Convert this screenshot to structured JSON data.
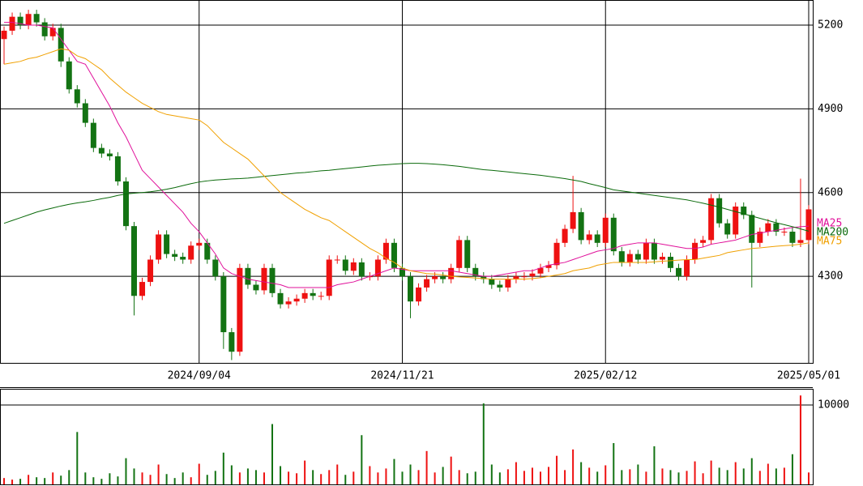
{
  "chart_data": {
    "type": "candlestick",
    "categories": [
      null,
      null,
      null,
      null,
      null,
      null,
      null,
      null,
      null,
      null,
      null,
      null,
      null,
      null,
      null,
      null,
      null,
      null,
      null,
      null,
      null,
      null,
      null,
      null,
      "2024/09/04",
      null,
      null,
      null,
      null,
      null,
      null,
      null,
      null,
      null,
      null,
      null,
      null,
      null,
      null,
      null,
      null,
      null,
      null,
      null,
      null,
      null,
      null,
      null,
      null,
      "2024/11/21",
      null,
      null,
      null,
      null,
      null,
      null,
      null,
      null,
      null,
      null,
      null,
      null,
      null,
      null,
      null,
      null,
      null,
      null,
      null,
      null,
      null,
      null,
      null,
      null,
      "2025/02/12",
      null,
      null,
      null,
      null,
      null,
      null,
      null,
      null,
      null,
      null,
      null,
      null,
      null,
      null,
      null,
      null,
      null,
      null,
      null,
      null,
      null,
      null,
      null,
      null,
      "2025/05/01"
    ],
    "open": [
      5150,
      5180,
      5230,
      5200,
      5240,
      5210,
      5160,
      5190,
      5070,
      4970,
      4920,
      4850,
      4760,
      4740,
      4730,
      4640,
      4480,
      4230,
      4280,
      4360,
      4450,
      4380,
      4370,
      4360,
      4410,
      4420,
      4360,
      4300,
      4100,
      4030,
      4330,
      4270,
      4250,
      4330,
      4240,
      4200,
      4210,
      4220,
      4240,
      4230,
      4230,
      4360,
      4360,
      4320,
      4350,
      4300,
      4300,
      4360,
      4420,
      4330,
      4300,
      4210,
      4260,
      4290,
      4300,
      4290,
      4330,
      4430,
      4330,
      4300,
      4290,
      4270,
      4260,
      4290,
      4300,
      4300,
      4310,
      4330,
      4340,
      4420,
      4470,
      4530,
      4430,
      4450,
      4420,
      4510,
      4390,
      4350,
      4380,
      4360,
      4420,
      4360,
      4370,
      4330,
      4300,
      4360,
      4420,
      4430,
      4580,
      4490,
      4450,
      4550,
      4520,
      4420,
      4460,
      4490,
      4460,
      4460,
      4420,
      4430
    ],
    "high": [
      5195,
      5245,
      5245,
      5255,
      5255,
      5225,
      5205,
      5205,
      5085,
      4985,
      4935,
      4865,
      4775,
      4755,
      4745,
      4655,
      4495,
      4295,
      4375,
      4465,
      4465,
      4395,
      4385,
      4425,
      4435,
      4435,
      4375,
      4315,
      4115,
      4345,
      4345,
      4285,
      4345,
      4345,
      4255,
      4225,
      4235,
      4255,
      4255,
      4245,
      4375,
      4375,
      4375,
      4365,
      4365,
      4315,
      4375,
      4435,
      4435,
      4345,
      4315,
      4275,
      4305,
      4315,
      4315,
      4345,
      4445,
      4445,
      4345,
      4315,
      4305,
      4285,
      4305,
      4315,
      4315,
      4325,
      4345,
      4355,
      4435,
      4485,
      4660,
      4545,
      4465,
      4465,
      4525,
      4525,
      4405,
      4395,
      4395,
      4435,
      4435,
      4385,
      4385,
      4345,
      4375,
      4435,
      4445,
      4595,
      4595,
      4505,
      4565,
      4565,
      4535,
      4475,
      4505,
      4505,
      4475,
      4475,
      4650,
      4555
    ],
    "low": [
      5060,
      5165,
      5185,
      5185,
      5195,
      5145,
      5145,
      5050,
      4955,
      4905,
      4835,
      4745,
      4725,
      4715,
      4625,
      4465,
      4160,
      4215,
      4265,
      4345,
      4365,
      4355,
      4345,
      4345,
      4395,
      4345,
      4285,
      4040,
      4000,
      4015,
      4255,
      4235,
      4235,
      4225,
      4185,
      4185,
      4195,
      4205,
      4215,
      4215,
      4215,
      4345,
      4305,
      4305,
      4285,
      4285,
      4285,
      4345,
      4315,
      4285,
      4150,
      4195,
      4245,
      4275,
      4275,
      4275,
      4315,
      4315,
      4285,
      4275,
      4255,
      4245,
      4245,
      4275,
      4285,
      4285,
      4295,
      4315,
      4325,
      4405,
      4455,
      4415,
      4415,
      4405,
      4405,
      4375,
      4335,
      4335,
      4345,
      4345,
      4345,
      4345,
      4315,
      4285,
      4285,
      4345,
      4405,
      4415,
      4475,
      4435,
      4435,
      4505,
      4260,
      4405,
      4445,
      4445,
      4445,
      4405,
      4405,
      4415
    ],
    "close": [
      5180,
      5230,
      5200,
      5240,
      5210,
      5160,
      5190,
      5070,
      4970,
      4920,
      4850,
      4760,
      4740,
      4730,
      4640,
      4480,
      4230,
      4280,
      4360,
      4450,
      4380,
      4370,
      4360,
      4410,
      4420,
      4360,
      4300,
      4100,
      4030,
      4330,
      4270,
      4250,
      4330,
      4240,
      4200,
      4210,
      4220,
      4240,
      4230,
      4230,
      4360,
      4360,
      4320,
      4350,
      4300,
      4300,
      4360,
      4420,
      4330,
      4300,
      4210,
      4260,
      4290,
      4300,
      4290,
      4330,
      4430,
      4330,
      4300,
      4290,
      4270,
      4260,
      4290,
      4300,
      4300,
      4310,
      4330,
      4340,
      4420,
      4470,
      4530,
      4430,
      4450,
      4420,
      4510,
      4390,
      4350,
      4380,
      4360,
      4420,
      4360,
      4370,
      4330,
      4300,
      4360,
      4420,
      4430,
      4580,
      4490,
      4450,
      4550,
      4520,
      4420,
      4460,
      4490,
      4460,
      4460,
      4420,
      4430,
      4540
    ],
    "up_color": "#ee1111",
    "down_color": "#137313",
    "ylim": [
      3990,
      5290
    ],
    "yticks": [
      4300,
      4600,
      4900,
      5200
    ],
    "grid": true,
    "series": [
      {
        "name": "MA25",
        "color": "#e0109a",
        "values": [
          5210,
          5210,
          5205,
          5200,
          5200,
          5195,
          5190,
          5150,
          5110,
          5070,
          5060,
          5010,
          4960,
          4910,
          4850,
          4800,
          4740,
          4680,
          4650,
          4620,
          4590,
          4560,
          4530,
          4490,
          4460,
          4420,
          4380,
          4330,
          4310,
          4300,
          4290,
          4285,
          4280,
          4275,
          4270,
          4260,
          4260,
          4260,
          4260,
          4260,
          4260,
          4270,
          4275,
          4280,
          4290,
          4300,
          4310,
          4320,
          4330,
          4325,
          4320,
          4320,
          4320,
          4320,
          4320,
          4320,
          4315,
          4310,
          4305,
          4300,
          4300,
          4305,
          4310,
          4315,
          4320,
          4320,
          4330,
          4340,
          4345,
          4350,
          4360,
          4370,
          4380,
          4390,
          4395,
          4400,
          4410,
          4415,
          4420,
          4420,
          4420,
          4415,
          4410,
          4405,
          4400,
          4400,
          4405,
          4415,
          4420,
          4425,
          4430,
          4440,
          4450,
          4455,
          4460,
          4465,
          4470,
          4475,
          4478,
          4480
        ]
      },
      {
        "name": "MA200",
        "color": "#0a6a0a",
        "values": [
          4490,
          4500,
          4510,
          4520,
          4530,
          4538,
          4545,
          4552,
          4558,
          4563,
          4567,
          4572,
          4578,
          4583,
          4590,
          4595,
          4598,
          4600,
          4603,
          4607,
          4612,
          4618,
          4625,
          4632,
          4638,
          4642,
          4645,
          4647,
          4649,
          4650,
          4652,
          4655,
          4658,
          4661,
          4664,
          4667,
          4670,
          4672,
          4675,
          4678,
          4680,
          4683,
          4686,
          4689,
          4692,
          4695,
          4698,
          4700,
          4702,
          4704,
          4705,
          4705,
          4704,
          4702,
          4700,
          4697,
          4694,
          4690,
          4686,
          4682,
          4680,
          4677,
          4674,
          4671,
          4668,
          4665,
          4662,
          4658,
          4654,
          4650,
          4645,
          4640,
          4632,
          4625,
          4618,
          4610,
          4606,
          4602,
          4598,
          4594,
          4590,
          4586,
          4582,
          4578,
          4574,
          4568,
          4562,
          4555,
          4548,
          4540,
          4532,
          4524,
          4516,
          4508,
          4500,
          4492,
          4485,
          4478,
          4470,
          4462
        ]
      },
      {
        "name": "MA75",
        "color": "#f0a000",
        "values": [
          5060,
          5065,
          5070,
          5080,
          5085,
          5095,
          5105,
          5115,
          5110,
          5090,
          5080,
          5060,
          5040,
          5010,
          4985,
          4960,
          4940,
          4920,
          4905,
          4890,
          4880,
          4875,
          4870,
          4865,
          4860,
          4840,
          4810,
          4780,
          4760,
          4740,
          4720,
          4690,
          4660,
          4630,
          4600,
          4580,
          4560,
          4540,
          4525,
          4510,
          4500,
          4480,
          4460,
          4440,
          4420,
          4400,
          4385,
          4365,
          4350,
          4330,
          4320,
          4315,
          4310,
          4308,
          4305,
          4300,
          4298,
          4296,
          4294,
          4292,
          4290,
          4290,
          4290,
          4290,
          4290,
          4292,
          4295,
          4300,
          4305,
          4310,
          4320,
          4325,
          4330,
          4340,
          4345,
          4350,
          4350,
          4350,
          4350,
          4350,
          4352,
          4354,
          4356,
          4358,
          4360,
          4360,
          4365,
          4370,
          4375,
          4385,
          4390,
          4395,
          4400,
          4402,
          4405,
          4408,
          4410,
          4412,
          4415,
          4420
        ]
      }
    ],
    "volume": {
      "values": [
        800,
        600,
        700,
        1200,
        900,
        800,
        1500,
        1100,
        1800,
        6600,
        1500,
        900,
        700,
        1400,
        1000,
        3300,
        2000,
        1500,
        1200,
        2500,
        1300,
        800,
        1500,
        900,
        2600,
        1200,
        1700,
        4000,
        2400,
        1500,
        2000,
        1800,
        1500,
        7600,
        2300,
        1600,
        1400,
        3000,
        1800,
        1300,
        1800,
        2500,
        1200,
        1600,
        6200,
        2300,
        1500,
        2000,
        3200,
        1600,
        2500,
        1800,
        4200,
        1500,
        2200,
        3500,
        1800,
        1400,
        1600,
        10200,
        2500,
        1500,
        1900,
        2800,
        1700,
        2100,
        1600,
        2200,
        3600,
        1800,
        4400,
        2800,
        2100,
        1600,
        2400,
        5200,
        1800,
        1900,
        2500,
        1600,
        4800,
        2000,
        1800,
        1500,
        1700,
        2900,
        1400,
        3000,
        2100,
        1800,
        2800,
        2000,
        3300,
        1700,
        2600,
        2000,
        2100,
        3800,
        11200,
        1500
      ],
      "ylim": [
        0,
        12040
      ],
      "yticks": [
        10000
      ]
    }
  }
}
